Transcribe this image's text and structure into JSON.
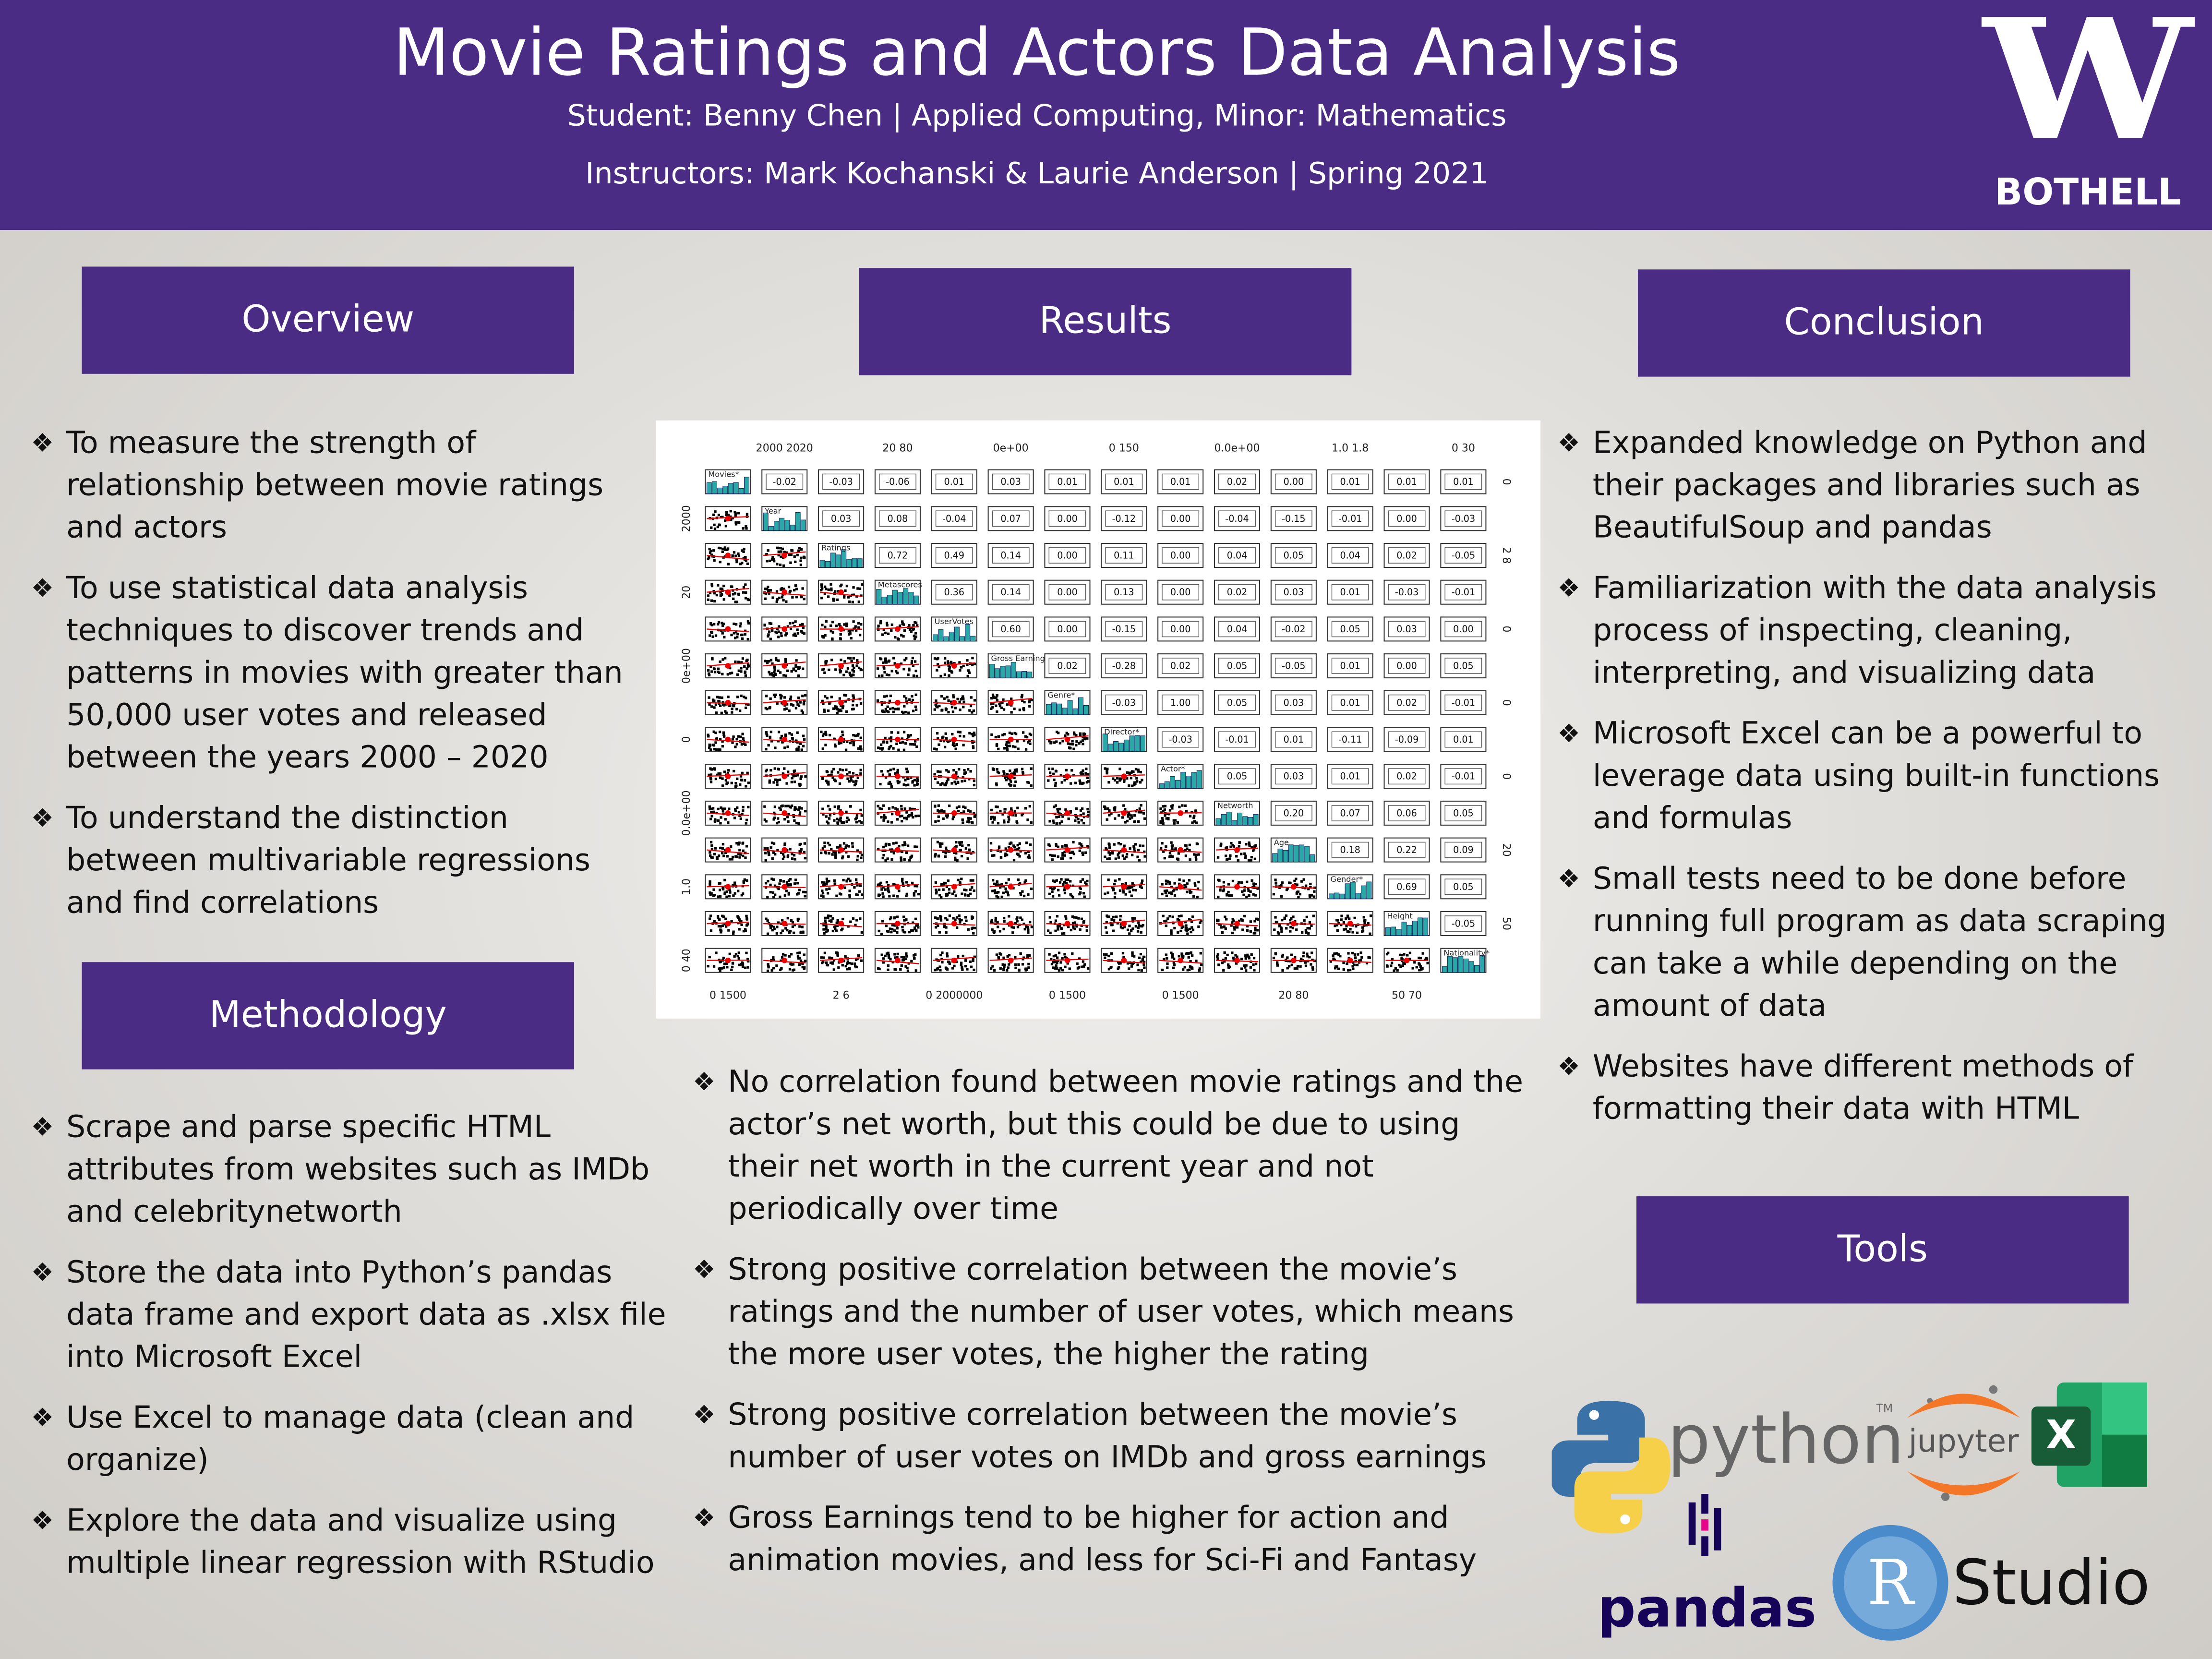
{
  "header": {
    "title": "Movie Ratings and Actors Data Analysis",
    "student": "Student: Benny Chen | Applied Computing, Minor: Mathematics",
    "instructors": "Instructors: Mark Kochanski & Laurie Anderson | Spring 2021",
    "logo": {
      "mark": "W",
      "campus": "BOTHELL"
    }
  },
  "sections": {
    "overview": {
      "heading": "Overview",
      "items": [
        "To measure the strength of relationship between movie ratings and actors",
        "To use statistical data analysis techniques to discover trends and patterns in movies with greater than 50,000 user votes and released between the years 2000 – 2020",
        "To understand the distinction between multivariable regressions and find correlations"
      ]
    },
    "methodology": {
      "heading": "Methodology",
      "items": [
        "Scrape and parse specific HTML attributes from websites such as IMDb and celebritynetworth",
        "Store the data into Python’s pandas data frame and export data as .xlsx file into Microsoft Excel",
        "Use Excel to manage data (clean and organize)",
        "Explore the data and visualize using multiple linear regression with RStudio"
      ]
    },
    "results": {
      "heading": "Results",
      "items": [
        "No correlation found between movie ratings and the actor’s net worth, but this could be due to using their net worth in the current year and not periodically over time",
        "Strong positive correlation between the movie’s ratings and the number of user votes, which means the more user votes, the higher the rating",
        "Strong positive correlation between the movie’s number of user votes on IMDb and gross earnings",
        "Gross Earnings tend to be higher for action and animation movies, and less for Sci-Fi and Fantasy"
      ]
    },
    "conclusion": {
      "heading": "Conclusion",
      "items": [
        "Expanded knowledge on Python and their packages and libraries such as BeautifulSoup and pandas",
        "Familiarization with the data analysis process of inspecting, cleaning, interpreting, and visualizing data",
        "Microsoft Excel can be a powerful to leverage data using built-in functions and formulas",
        "Small tests need to be done before running full program as data scraping can take a while depending on the amount of data",
        "Websites have different methods of formatting their data with HTML"
      ]
    },
    "tools": {
      "heading": "Tools",
      "logos": {
        "python": "python",
        "tm": "TM",
        "jupyter": "jupyter",
        "excel": "X",
        "pandas": "pandas",
        "r": "R",
        "studio": "Studio"
      }
    }
  },
  "figure": {
    "variables": [
      "Movies*",
      "Year",
      "Ratings",
      "Metascores",
      "UserVotes",
      "Gross Earnings",
      "Genre*",
      "Director*",
      "Actor*",
      "Networth",
      "Age",
      "Gender*",
      "Height",
      "Nationality*"
    ],
    "correlations": [
      [
        "-0.02",
        "-0.03",
        "-0.06",
        "0.01",
        "0.03",
        "0.01",
        "0.01",
        "0.01",
        "0.02",
        "0.00",
        "0.01",
        "0.01",
        "0.01"
      ],
      [
        "0.03",
        "0.08",
        "-0.04",
        "0.07",
        "0.00",
        "-0.12",
        "0.00",
        "-0.04",
        "-0.15",
        "-0.01",
        "0.00",
        "-0.03"
      ],
      [
        "0.72",
        "0.49",
        "0.14",
        "0.00",
        "0.11",
        "0.00",
        "0.04",
        "0.05",
        "0.04",
        "0.02",
        "-0.05"
      ],
      [
        "0.36",
        "0.14",
        "0.00",
        "0.13",
        "0.00",
        "0.02",
        "0.03",
        "0.01",
        "-0.03",
        "-0.01"
      ],
      [
        "0.60",
        "0.00",
        "-0.15",
        "0.00",
        "0.04",
        "-0.02",
        "0.05",
        "0.03",
        "0.00"
      ],
      [
        "0.02",
        "-0.28",
        "0.02",
        "0.05",
        "-0.05",
        "0.01",
        "0.00",
        "0.05"
      ],
      [
        "-0.03",
        "1.00",
        "0.05",
        "0.03",
        "0.01",
        "0.02",
        "-0.01"
      ],
      [
        "-0.03",
        "-0.01",
        "0.01",
        "-0.11",
        "-0.09",
        "0.01"
      ],
      [
        "0.05",
        "0.03",
        "0.01",
        "0.02",
        "-0.01"
      ],
      [
        "0.20",
        "0.07",
        "0.06",
        "0.05"
      ],
      [
        "0.18",
        "0.22",
        "0.09"
      ],
      [
        "0.69",
        "0.05"
      ],
      [
        "-0.05"
      ]
    ],
    "top_axis": [
      "2000  2020",
      "20  80",
      "0e+00",
      "0  150",
      "0.0e+00",
      "1.0  1.8",
      "0  30"
    ],
    "bottom_axis": [
      "0  1500",
      "2  6",
      "0  2000000",
      "0  1500",
      "0  1500",
      "20  80",
      "50  70"
    ],
    "left_axis": [
      "2000",
      "20",
      "0e+00",
      "0",
      "0.0e+00",
      "1.0",
      "0  40"
    ],
    "right_axis": [
      "0",
      "2  8",
      "0",
      "0",
      "0",
      "20",
      "50"
    ]
  }
}
